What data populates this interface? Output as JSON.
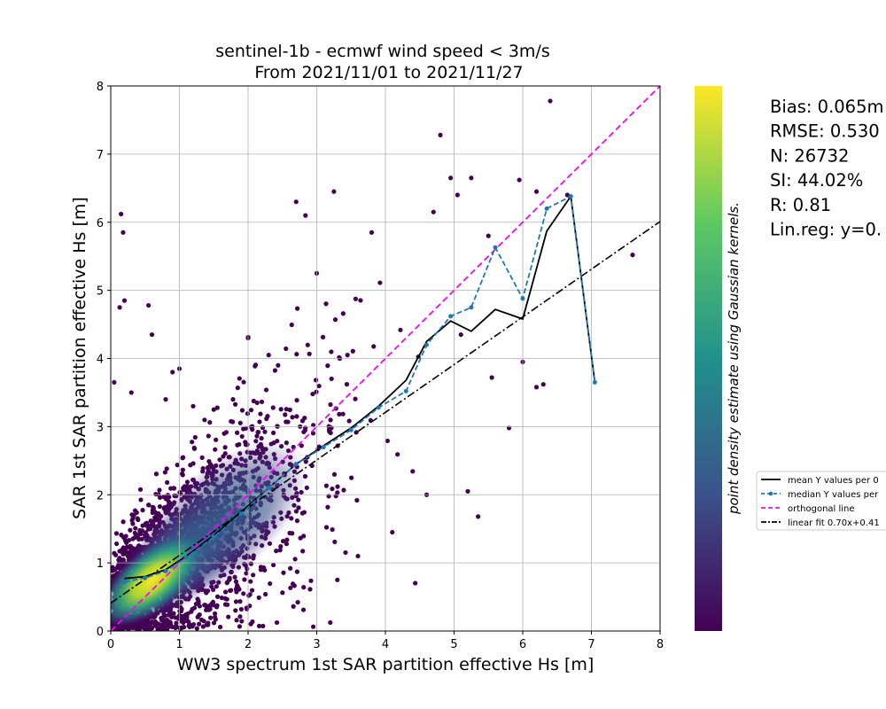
{
  "chart_data": {
    "type": "scatter",
    "title_line1": "sentinel-1b - ecmwf wind speed < 3m/s",
    "title_line2": "From 2021/11/01 to 2021/11/27",
    "xlabel": "WW3 spectrum 1st SAR partition effective Hs [m]",
    "ylabel": "SAR 1st SAR partition effective Hs [m]",
    "xlim": [
      0,
      8
    ],
    "ylim": [
      0,
      8
    ],
    "xticks": [
      "0",
      "1",
      "2",
      "3",
      "4",
      "5",
      "6",
      "7",
      "8"
    ],
    "yticks": [
      "0",
      "1",
      "2",
      "3",
      "4",
      "5",
      "6",
      "7",
      "8"
    ],
    "grid": true,
    "colorbar_label": "point density estimate using Gaussian kernels.",
    "colormap": "viridis",
    "colormap_colors": [
      "#440154",
      "#3b528b",
      "#21918c",
      "#5ec962",
      "#fde725"
    ],
    "stats": [
      "Bias: 0.065m",
      "RMSE: 0.530",
      "N: 26732",
      "SI: 44.02%",
      "R: 0.81",
      "Lin.reg: y=0."
    ],
    "legend": [
      {
        "label": "mean Y values per 0",
        "color": "#000000",
        "style": "solid"
      },
      {
        "label": "median Y values per",
        "color": "#1f77b4",
        "style": "dashed-marker"
      },
      {
        "label": "orthogonal line",
        "color": "#ff00ff",
        "style": "dashed"
      },
      {
        "label": "linear fit 0.70x+0.41",
        "color": "#000000",
        "style": "dashdot"
      }
    ],
    "mean_line": {
      "x": [
        0.2,
        0.5,
        0.8,
        1.1,
        1.5,
        1.9,
        2.3,
        2.7,
        3.1,
        3.5,
        3.9,
        4.3,
        4.6,
        4.95,
        5.25,
        5.6,
        6.0,
        6.35,
        6.7,
        7.05
      ],
      "y": [
        0.77,
        0.8,
        0.9,
        1.1,
        1.4,
        1.75,
        2.1,
        2.45,
        2.72,
        2.98,
        3.3,
        3.68,
        4.25,
        4.55,
        4.4,
        4.72,
        4.58,
        5.87,
        6.38,
        3.65
      ]
    },
    "median_line": {
      "x": [
        0.2,
        0.5,
        0.8,
        1.1,
        1.5,
        1.9,
        2.3,
        2.7,
        3.1,
        3.5,
        3.9,
        4.3,
        4.6,
        4.95,
        5.25,
        5.6,
        6.0,
        6.35,
        6.7,
        7.05
      ],
      "y": [
        0.72,
        0.78,
        0.88,
        1.08,
        1.38,
        1.72,
        2.1,
        2.45,
        2.7,
        2.95,
        3.28,
        3.52,
        4.2,
        4.62,
        4.75,
        5.63,
        4.88,
        6.2,
        6.38,
        3.65
      ]
    },
    "orthogonal_line": {
      "x": [
        0,
        8
      ],
      "y": [
        0,
        8
      ]
    },
    "linear_fit": {
      "slope": 0.7,
      "intercept": 0.41
    },
    "outliers": {
      "x": [
        0.15,
        0.18,
        0.13,
        0.2,
        0.55,
        0.6,
        0.9,
        1.2,
        1.0,
        0.8,
        2.7,
        3.25,
        2.3,
        4.8,
        4.95,
        5.05,
        5.25,
        5.5,
        5.95,
        6.2,
        6.4,
        6.65,
        7.6,
        6.3,
        6.2,
        5.8,
        5.35,
        5.55,
        6.0,
        5.2,
        4.6,
        4.1,
        3.6,
        3.3,
        0.3,
        0.05,
        0.1,
        4.7,
        5.1,
        3.8,
        3.0,
        2.0,
        1.5
      ],
      "y": [
        6.12,
        5.85,
        4.75,
        4.85,
        4.78,
        4.35,
        3.8,
        3.3,
        3.85,
        3.4,
        6.3,
        6.45,
        4.05,
        7.28,
        6.65,
        6.4,
        6.65,
        5.8,
        6.62,
        6.45,
        7.78,
        6.4,
        5.52,
        3.62,
        3.58,
        2.98,
        1.68,
        3.72,
        3.95,
        2.05,
        2.0,
        1.45,
        1.1,
        0.75,
        3.5,
        3.65,
        0.15,
        6.15,
        4.35,
        5.85,
        5.25,
        4.3,
        3.25
      ]
    }
  }
}
